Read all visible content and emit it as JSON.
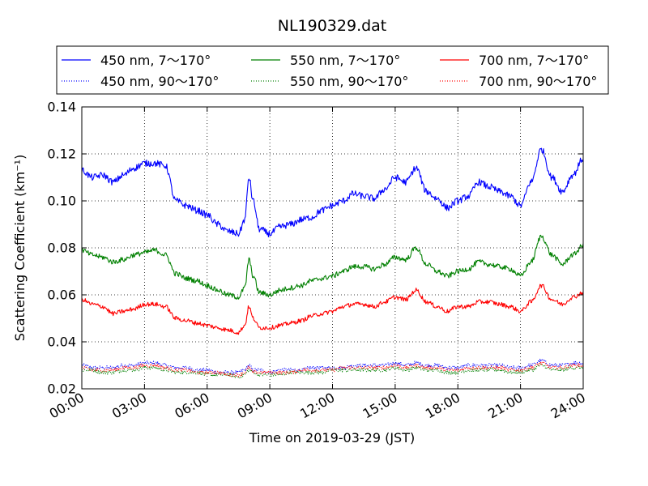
{
  "chart_data": {
    "type": "line",
    "title": "NL190329.dat",
    "xlabel": "Time on 2019-03-29 (JST)",
    "ylabel": "Scattering Coefficient (km⁻¹)",
    "xlim": [
      "00:00",
      "24:00"
    ],
    "ylim": [
      0.02,
      0.14
    ],
    "x_ticks": [
      "00:00",
      "03:00",
      "06:00",
      "09:00",
      "12:00",
      "15:00",
      "18:00",
      "21:00",
      "24:00"
    ],
    "y_ticks": [
      "0.02",
      "0.04",
      "0.06",
      "0.08",
      "0.10",
      "0.12",
      "0.14"
    ],
    "grid": true,
    "legend_position": "top, outside plot, above axes (3 columns)",
    "x_hours": [
      0,
      0.5,
      1,
      1.5,
      2,
      2.5,
      3,
      3.5,
      4,
      4.5,
      5,
      5.5,
      6,
      6.5,
      7,
      7.5,
      7.8,
      8,
      8.2,
      8.5,
      9,
      9.5,
      10,
      10.5,
      11,
      11.5,
      12,
      12.5,
      13,
      13.5,
      14,
      14.5,
      15,
      15.5,
      16,
      16.5,
      17,
      17.5,
      18,
      18.5,
      19,
      19.5,
      20,
      20.5,
      21,
      21.5,
      22,
      22.5,
      23,
      23.5,
      24
    ],
    "series": [
      {
        "name": "450 nm, 7～170°",
        "color": "#0000ff",
        "style": "solid",
        "values": [
          0.113,
          0.11,
          0.111,
          0.108,
          0.111,
          0.114,
          0.116,
          0.116,
          0.115,
          0.1,
          0.098,
          0.096,
          0.094,
          0.09,
          0.087,
          0.086,
          0.092,
          0.11,
          0.1,
          0.088,
          0.086,
          0.089,
          0.09,
          0.092,
          0.093,
          0.096,
          0.098,
          0.1,
          0.103,
          0.102,
          0.101,
          0.105,
          0.11,
          0.108,
          0.114,
          0.104,
          0.101,
          0.097,
          0.1,
          0.102,
          0.108,
          0.106,
          0.104,
          0.102,
          0.098,
          0.108,
          0.122,
          0.11,
          0.104,
          0.111,
          0.118
        ]
      },
      {
        "name": "550 nm, 7～170°",
        "color": "#008000",
        "style": "solid",
        "values": [
          0.079,
          0.077,
          0.076,
          0.074,
          0.075,
          0.077,
          0.078,
          0.079,
          0.077,
          0.069,
          0.067,
          0.066,
          0.064,
          0.062,
          0.06,
          0.059,
          0.063,
          0.075,
          0.068,
          0.061,
          0.06,
          0.062,
          0.063,
          0.064,
          0.066,
          0.067,
          0.068,
          0.07,
          0.072,
          0.072,
          0.071,
          0.073,
          0.076,
          0.075,
          0.08,
          0.073,
          0.07,
          0.068,
          0.07,
          0.071,
          0.074,
          0.073,
          0.072,
          0.071,
          0.068,
          0.074,
          0.085,
          0.077,
          0.073,
          0.077,
          0.081
        ]
      },
      {
        "name": "700 nm, 7～170°",
        "color": "#ff0000",
        "style": "solid",
        "values": [
          0.058,
          0.056,
          0.055,
          0.052,
          0.053,
          0.054,
          0.056,
          0.056,
          0.055,
          0.05,
          0.049,
          0.048,
          0.047,
          0.046,
          0.045,
          0.044,
          0.047,
          0.055,
          0.05,
          0.046,
          0.046,
          0.047,
          0.048,
          0.049,
          0.051,
          0.052,
          0.053,
          0.055,
          0.056,
          0.056,
          0.055,
          0.057,
          0.059,
          0.058,
          0.062,
          0.057,
          0.055,
          0.053,
          0.055,
          0.055,
          0.057,
          0.057,
          0.056,
          0.055,
          0.053,
          0.057,
          0.064,
          0.058,
          0.056,
          0.059,
          0.061
        ]
      },
      {
        "name": "450 nm, 90～170°",
        "color": "#0000ff",
        "style": "dotted",
        "values": [
          0.03,
          0.029,
          0.029,
          0.029,
          0.03,
          0.03,
          0.031,
          0.031,
          0.03,
          0.029,
          0.029,
          0.028,
          0.028,
          0.027,
          0.027,
          0.027,
          0.028,
          0.03,
          0.028,
          0.028,
          0.027,
          0.028,
          0.028,
          0.028,
          0.029,
          0.029,
          0.029,
          0.029,
          0.03,
          0.03,
          0.03,
          0.03,
          0.031,
          0.03,
          0.031,
          0.03,
          0.03,
          0.029,
          0.029,
          0.03,
          0.03,
          0.03,
          0.03,
          0.029,
          0.029,
          0.03,
          0.032,
          0.03,
          0.03,
          0.031,
          0.031
        ]
      },
      {
        "name": "550 nm, 90～170°",
        "color": "#008000",
        "style": "dotted",
        "values": [
          0.028,
          0.028,
          0.027,
          0.027,
          0.028,
          0.028,
          0.029,
          0.029,
          0.028,
          0.027,
          0.027,
          0.027,
          0.026,
          0.026,
          0.026,
          0.025,
          0.026,
          0.028,
          0.027,
          0.026,
          0.026,
          0.026,
          0.027,
          0.027,
          0.027,
          0.027,
          0.028,
          0.028,
          0.028,
          0.028,
          0.028,
          0.028,
          0.029,
          0.028,
          0.029,
          0.028,
          0.028,
          0.027,
          0.027,
          0.028,
          0.028,
          0.028,
          0.028,
          0.027,
          0.027,
          0.028,
          0.03,
          0.028,
          0.028,
          0.029,
          0.029
        ]
      },
      {
        "name": "700 nm, 90～170°",
        "color": "#ff0000",
        "style": "dotted",
        "values": [
          0.029,
          0.028,
          0.028,
          0.028,
          0.029,
          0.029,
          0.03,
          0.03,
          0.029,
          0.028,
          0.028,
          0.027,
          0.027,
          0.027,
          0.026,
          0.026,
          0.027,
          0.029,
          0.027,
          0.027,
          0.027,
          0.027,
          0.027,
          0.028,
          0.028,
          0.028,
          0.028,
          0.029,
          0.029,
          0.029,
          0.029,
          0.029,
          0.03,
          0.029,
          0.03,
          0.029,
          0.029,
          0.028,
          0.028,
          0.029,
          0.029,
          0.029,
          0.029,
          0.028,
          0.028,
          0.029,
          0.031,
          0.029,
          0.029,
          0.03,
          0.03
        ]
      }
    ]
  }
}
